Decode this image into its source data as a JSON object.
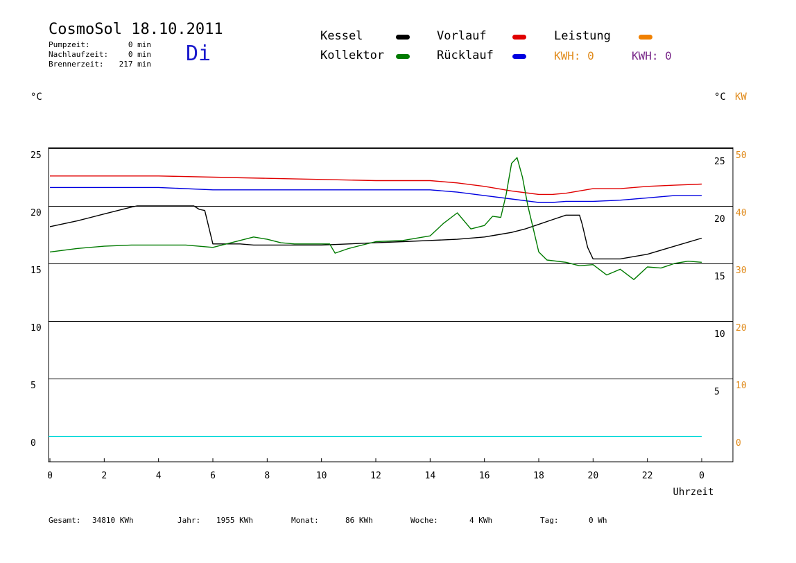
{
  "header": {
    "title": "CosmoSol 18.10.2011",
    "day": "Di",
    "stats": [
      {
        "label": "Pumpzeit:",
        "value": "0 min"
      },
      {
        "label": "Nachlaufzeit:",
        "value": "0 min"
      },
      {
        "label": "Brennerzeit:",
        "value": "217 min"
      }
    ]
  },
  "legend": {
    "items": [
      {
        "label": "Kessel",
        "color": "#000000"
      },
      {
        "label": "Vorlauf",
        "color": "#e00000"
      },
      {
        "label": "Leistung",
        "color": "#f08000"
      },
      {
        "label": "Kollektor",
        "color": "#007a00"
      },
      {
        "label": "Rücklauf",
        "color": "#0000e0"
      }
    ],
    "kwh_orange": "KWH: 0",
    "kwh_purple": "KWH: 0",
    "kwh_orange_color": "#e08a1a",
    "kwh_purple_color": "#7a2a8a"
  },
  "units": {
    "left": "°C",
    "right": "°C",
    "right_kw": "KW"
  },
  "footer": {
    "gesamt_label": "Gesamt:",
    "gesamt_value": "34810 KWh",
    "jahr_label": "Jahr:",
    "jahr_value": "1955 KWh",
    "monat_label": "Monat:",
    "monat_value": "86 KWh",
    "woche_label": "Woche:",
    "woche_value": "4 KWh",
    "tag_label": "Tag:",
    "tag_value": "0 Wh"
  },
  "chart_data": {
    "type": "line",
    "xlabel": "Uhrzeit",
    "xlim": [
      0,
      24
    ],
    "ylim": [
      -2,
      25.5
    ],
    "x_tick_labels": [
      "0",
      "2",
      "4",
      "6",
      "8",
      "10",
      "12",
      "14",
      "16",
      "18",
      "20",
      "22",
      "0"
    ],
    "y_left_ticks": [
      0,
      5,
      10,
      15,
      20,
      25
    ],
    "y_right_ticks": [
      5,
      10,
      15,
      20,
      25
    ],
    "y_kw_ticks": [
      0,
      10,
      20,
      30,
      40,
      50
    ],
    "grid": "horizontal",
    "series": [
      {
        "name": "Vorlauf",
        "color": "#e00000",
        "x": [
          0,
          2,
          4,
          6,
          8,
          10,
          12,
          14,
          15,
          16,
          17,
          18,
          18.5,
          19,
          20,
          21,
          22,
          23,
          24
        ],
        "y": [
          22.6,
          22.6,
          22.6,
          22.5,
          22.4,
          22.3,
          22.2,
          22.2,
          22.0,
          21.7,
          21.3,
          21.0,
          21.0,
          21.1,
          21.5,
          21.5,
          21.7,
          21.8,
          21.9
        ]
      },
      {
        "name": "Rücklauf",
        "color": "#0000e0",
        "x": [
          0,
          2,
          4,
          6,
          8,
          10,
          12,
          14,
          15,
          16,
          17,
          18,
          18.5,
          19,
          20,
          21,
          22,
          23,
          24
        ],
        "y": [
          21.6,
          21.6,
          21.6,
          21.4,
          21.4,
          21.4,
          21.4,
          21.4,
          21.2,
          20.9,
          20.6,
          20.3,
          20.3,
          20.4,
          20.4,
          20.5,
          20.7,
          20.9,
          20.9
        ]
      },
      {
        "name": "Kessel",
        "color": "#000000",
        "x": [
          0,
          1,
          2,
          3,
          3.2,
          5.3,
          5.5,
          5.7,
          6,
          7,
          7.5,
          9,
          10,
          11,
          12,
          13,
          14,
          15,
          16,
          16.5,
          17,
          17.5,
          18,
          18.5,
          19,
          19.5,
          19.6,
          19.8,
          20,
          21,
          22,
          23,
          24
        ],
        "y": [
          18.2,
          18.7,
          19.3,
          19.9,
          20.0,
          20.0,
          19.7,
          19.6,
          16.7,
          16.7,
          16.6,
          16.6,
          16.6,
          16.7,
          16.8,
          16.9,
          17.0,
          17.1,
          17.3,
          17.5,
          17.7,
          18.0,
          18.4,
          18.8,
          19.2,
          19.2,
          18.4,
          16.4,
          15.4,
          15.4,
          15.8,
          16.5,
          17.2
        ]
      },
      {
        "name": "Kollektor",
        "color": "#007a00",
        "x": [
          0,
          1,
          2,
          3,
          4,
          5,
          6,
          6.5,
          7,
          7.5,
          8,
          8.5,
          9,
          10,
          10.3,
          10.5,
          11,
          12,
          13,
          14,
          14.5,
          15,
          15.5,
          16,
          16.3,
          16.6,
          16.8,
          17,
          17.2,
          17.4,
          17.6,
          17.8,
          18,
          18.3,
          19,
          19.5,
          20,
          20.5,
          21,
          21.5,
          22,
          22.5,
          23,
          23.5,
          24
        ],
        "y": [
          16.0,
          16.3,
          16.5,
          16.6,
          16.6,
          16.6,
          16.4,
          16.7,
          17.0,
          17.3,
          17.1,
          16.8,
          16.7,
          16.7,
          16.7,
          15.9,
          16.3,
          16.9,
          17.0,
          17.4,
          18.5,
          19.4,
          18.0,
          18.3,
          19.1,
          19.0,
          21.0,
          23.7,
          24.2,
          22.5,
          20.0,
          18.0,
          16.0,
          15.3,
          15.1,
          14.8,
          14.9,
          14.0,
          14.5,
          13.6,
          14.7,
          14.6,
          15.0,
          15.2,
          15.1
        ]
      },
      {
        "name": "Leistung",
        "color": "#f08000",
        "x": [
          0,
          24
        ],
        "y": [
          0,
          0
        ]
      }
    ]
  }
}
